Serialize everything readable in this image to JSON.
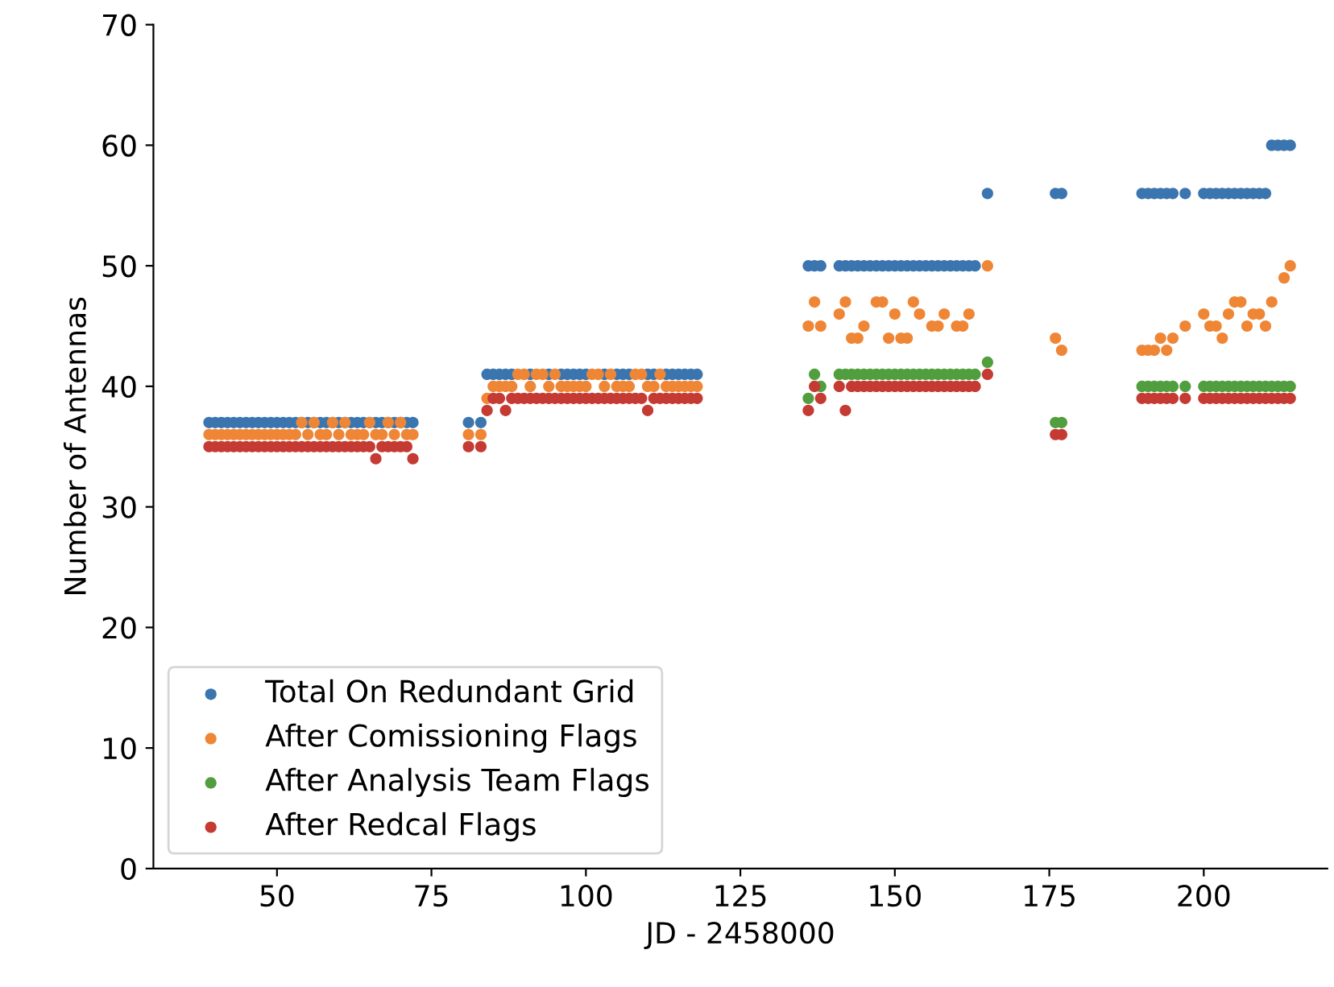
{
  "chart_data": {
    "type": "scatter",
    "xlabel": "JD - 2458000",
    "ylabel": "Number of Antennas",
    "xlim": [
      30,
      220
    ],
    "ylim": [
      0,
      70
    ],
    "xticks": [
      50,
      75,
      100,
      125,
      150,
      175,
      200
    ],
    "yticks": [
      0,
      10,
      20,
      30,
      40,
      50,
      60,
      70
    ],
    "grid": false,
    "legend": "bottom left",
    "marker": "circle",
    "x": [
      39,
      40,
      41,
      42,
      43,
      44,
      45,
      46,
      47,
      48,
      49,
      50,
      51,
      52,
      53,
      54,
      55,
      56,
      57,
      58,
      59,
      60,
      61,
      62,
      63,
      64,
      65,
      66,
      67,
      68,
      69,
      70,
      71,
      72,
      81,
      83,
      84,
      85,
      86,
      87,
      88,
      89,
      90,
      91,
      92,
      93,
      94,
      95,
      96,
      97,
      98,
      99,
      100,
      101,
      102,
      103,
      104,
      105,
      106,
      107,
      108,
      109,
      110,
      111,
      112,
      113,
      114,
      115,
      116,
      117,
      118,
      136,
      137,
      138,
      141,
      142,
      143,
      144,
      145,
      146,
      147,
      148,
      149,
      150,
      151,
      152,
      153,
      154,
      155,
      156,
      157,
      158,
      159,
      160,
      161,
      162,
      163,
      165,
      176,
      177,
      190,
      191,
      192,
      193,
      194,
      195,
      197,
      200,
      201,
      202,
      203,
      204,
      205,
      206,
      207,
      208,
      209,
      210,
      211,
      212,
      213,
      214
    ],
    "series": [
      {
        "name": "Total On Redundant Grid",
        "color": "#3b75af",
        "values": [
          37,
          37,
          37,
          37,
          37,
          37,
          37,
          37,
          37,
          37,
          37,
          37,
          37,
          37,
          37,
          37,
          37,
          37,
          37,
          37,
          37,
          37,
          37,
          37,
          37,
          37,
          37,
          37,
          37,
          37,
          37,
          37,
          37,
          37,
          37,
          37,
          41,
          41,
          41,
          41,
          41,
          null,
          null,
          41,
          null,
          null,
          41,
          null,
          41,
          41,
          41,
          41,
          41,
          null,
          null,
          41,
          null,
          41,
          41,
          41,
          null,
          null,
          41,
          41,
          null,
          41,
          41,
          41,
          41,
          41,
          41,
          50,
          50,
          50,
          50,
          50,
          50,
          50,
          50,
          50,
          50,
          50,
          50,
          50,
          50,
          50,
          50,
          50,
          50,
          50,
          50,
          50,
          50,
          50,
          50,
          50,
          50,
          56,
          56,
          56,
          56,
          56,
          56,
          56,
          56,
          56,
          56,
          56,
          56,
          56,
          56,
          56,
          56,
          56,
          56,
          56,
          56,
          56,
          60,
          60,
          60,
          60
        ]
      },
      {
        "name": "After Comissioning Flags",
        "color": "#ef8636",
        "values": [
          36,
          36,
          36,
          36,
          36,
          36,
          36,
          36,
          36,
          36,
          36,
          36,
          36,
          36,
          36,
          37,
          36,
          37,
          36,
          36,
          37,
          36,
          37,
          36,
          36,
          36,
          37,
          36,
          36,
          37,
          36,
          37,
          36,
          36,
          36,
          36,
          39,
          40,
          40,
          40,
          40,
          41,
          41,
          40,
          41,
          41,
          40,
          41,
          40,
          40,
          40,
          40,
          40,
          41,
          41,
          40,
          41,
          40,
          40,
          40,
          41,
          41,
          40,
          40,
          41,
          40,
          40,
          40,
          40,
          40,
          40,
          45,
          47,
          45,
          46,
          47,
          44,
          44,
          45,
          null,
          47,
          47,
          44,
          46,
          44,
          44,
          47,
          46,
          null,
          45,
          45,
          46,
          null,
          45,
          45,
          46,
          null,
          50,
          44,
          43,
          43,
          43,
          43,
          44,
          43,
          44,
          45,
          46,
          45,
          45,
          44,
          46,
          47,
          47,
          45,
          46,
          46,
          45,
          47,
          null,
          49,
          50
        ]
      },
      {
        "name": "After Analysis Team Flags",
        "color": "#519e3e",
        "values": [
          null,
          null,
          null,
          null,
          null,
          null,
          null,
          null,
          null,
          null,
          null,
          null,
          null,
          null,
          null,
          null,
          null,
          null,
          null,
          null,
          null,
          null,
          null,
          null,
          null,
          null,
          null,
          null,
          null,
          null,
          null,
          null,
          null,
          null,
          null,
          null,
          null,
          null,
          null,
          null,
          null,
          null,
          null,
          null,
          null,
          null,
          null,
          null,
          null,
          null,
          null,
          null,
          null,
          null,
          null,
          null,
          null,
          null,
          null,
          null,
          null,
          null,
          null,
          null,
          null,
          null,
          null,
          null,
          null,
          null,
          null,
          39,
          41,
          40,
          41,
          41,
          41,
          41,
          41,
          41,
          41,
          41,
          41,
          41,
          41,
          41,
          41,
          41,
          41,
          41,
          41,
          41,
          41,
          41,
          41,
          41,
          41,
          42,
          37,
          37,
          40,
          40,
          40,
          40,
          40,
          40,
          40,
          40,
          40,
          40,
          40,
          40,
          40,
          40,
          40,
          40,
          40,
          40,
          40,
          40,
          40,
          40
        ]
      },
      {
        "name": "After Redcal Flags",
        "color": "#c53a32",
        "values": [
          35,
          35,
          35,
          35,
          35,
          35,
          35,
          35,
          35,
          35,
          35,
          35,
          35,
          35,
          35,
          35,
          35,
          35,
          35,
          35,
          35,
          35,
          35,
          35,
          35,
          35,
          35,
          34,
          35,
          35,
          35,
          35,
          35,
          34,
          35,
          35,
          38,
          39,
          39,
          38,
          39,
          39,
          39,
          39,
          39,
          39,
          39,
          39,
          39,
          39,
          39,
          39,
          39,
          39,
          39,
          39,
          39,
          39,
          39,
          39,
          39,
          39,
          38,
          39,
          39,
          39,
          39,
          39,
          39,
          39,
          39,
          38,
          40,
          39,
          40,
          38,
          40,
          40,
          40,
          40,
          40,
          40,
          40,
          40,
          40,
          40,
          40,
          40,
          40,
          40,
          40,
          40,
          40,
          40,
          40,
          40,
          40,
          41,
          36,
          36,
          39,
          39,
          39,
          39,
          39,
          39,
          39,
          39,
          39,
          39,
          39,
          39,
          39,
          39,
          39,
          39,
          39,
          39,
          39,
          39,
          39,
          39
        ]
      }
    ]
  }
}
